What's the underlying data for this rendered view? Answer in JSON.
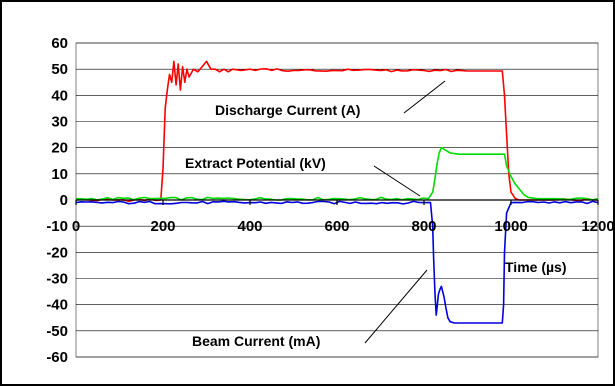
{
  "chart_data": {
    "type": "line",
    "title": "",
    "xlabel": "Time (µs)",
    "ylabel": "",
    "xlim": [
      0,
      1200
    ],
    "ylim": [
      -60,
      60
    ],
    "x_ticks": [
      0,
      200,
      400,
      600,
      800,
      1000,
      1200
    ],
    "y_ticks": [
      60,
      50,
      40,
      30,
      20,
      10,
      0,
      -10,
      -20,
      -30,
      -40,
      -50,
      -60
    ],
    "grid": "horizontal",
    "legend": "none",
    "series": [
      {
        "name": "Discharge Current (A)",
        "color": "#ff0000",
        "x": [
          0,
          195,
          200,
          205,
          210,
          215,
          220,
          225,
          230,
          235,
          240,
          245,
          250,
          255,
          260,
          270,
          280,
          290,
          300,
          310,
          320,
          330,
          340,
          350,
          360,
          380,
          400,
          500,
          600,
          700,
          800,
          900,
          980,
          985,
          990,
          995,
          1000,
          1010,
          1020,
          1050,
          1100,
          1200
        ],
        "y": [
          0,
          0,
          12,
          35,
          42,
          48,
          45,
          53,
          44,
          52,
          42,
          51,
          45,
          50,
          47,
          50,
          49,
          51,
          53,
          50,
          50,
          49,
          50,
          49,
          50,
          49.5,
          50,
          49.5,
          49.5,
          49.5,
          49.5,
          49.3,
          49.3,
          40,
          25,
          10,
          3,
          0.5,
          0,
          0,
          0,
          0
        ]
      },
      {
        "name": "Extract Potential (kV)",
        "color": "#00dd00",
        "x": [
          0,
          810,
          820,
          825,
          830,
          835,
          840,
          850,
          860,
          880,
          900,
          950,
          985,
          990,
          1000,
          1010,
          1020,
          1030,
          1040,
          1060,
          1100,
          1200
        ],
        "y": [
          0.5,
          0.5,
          3,
          8,
          14,
          18,
          20,
          19,
          18,
          17.5,
          17.5,
          17.5,
          17.5,
          13,
          9,
          6,
          4,
          2,
          1,
          0.5,
          0.5,
          0.5
        ]
      },
      {
        "name": "Beam Current (mA)",
        "color": "#0000dd",
        "x": [
          0,
          800,
          815,
          820,
          822,
          825,
          828,
          830,
          833,
          837,
          840,
          843,
          846,
          850,
          855,
          860,
          870,
          880,
          900,
          950,
          980,
          983,
          985,
          990,
          1000,
          1200
        ],
        "y": [
          -1,
          -1,
          -1,
          -10,
          -22,
          -35,
          -44,
          -41,
          -36,
          -34,
          -33,
          -35,
          -37,
          -41,
          -45,
          -46.5,
          -47,
          -47,
          -47,
          -47,
          -47,
          -40,
          -20,
          -5,
          -1,
          -1
        ]
      }
    ],
    "annotations": [
      {
        "text": "Discharge Current (A)",
        "series": 0
      },
      {
        "text": "Extract Potential (kV)",
        "series": 1
      },
      {
        "text": "Beam Current (mA)",
        "series": 2
      },
      {
        "text": "Time (µs)",
        "role": "x-axis-label"
      }
    ]
  }
}
